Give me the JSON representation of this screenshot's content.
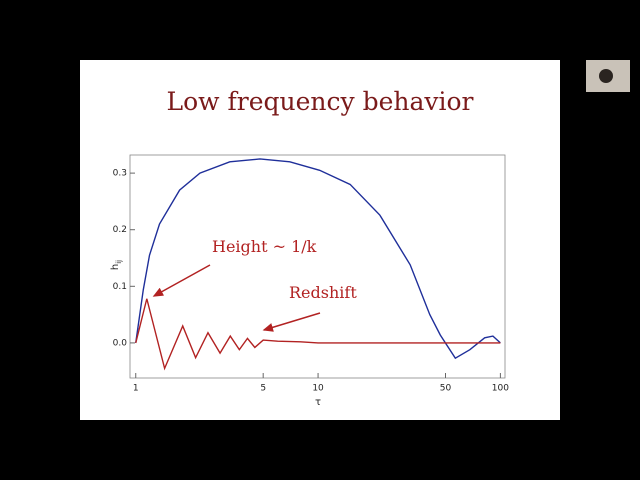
{
  "chart_data": {
    "type": "line",
    "title": "Low frequency behavior",
    "xlabel": "τ",
    "ylabel": [
      "h",
      "ij"
    ],
    "xscale": "log",
    "xlim": [
      0.93,
      106
    ],
    "ylim": [
      -0.062,
      0.332
    ],
    "xticks": [
      1,
      5,
      10,
      50,
      100
    ],
    "yticks": [
      {
        "value": 0,
        "label": "0.0"
      },
      0.1,
      0.2,
      0.3
    ],
    "annotations": [
      "Height ~ 1/k",
      "Redshift"
    ],
    "series": [
      {
        "color": "#1f2f9a",
        "x": [
          1,
          1.1,
          1.19,
          1.35,
          1.74,
          2.25,
          3.28,
          4.8,
          7,
          10.2,
          15,
          21.8,
          32,
          41,
          46.8,
          56.6,
          68,
          82,
          91,
          100
        ],
        "values": [
          0,
          0.094,
          0.155,
          0.21,
          0.27,
          0.3,
          0.32,
          0.325,
          0.32,
          0.305,
          0.28,
          0.226,
          0.138,
          0.05,
          0.014,
          -0.027,
          -0.012,
          0.009,
          0.012,
          0
        ]
      },
      {
        "color": "#b22222",
        "x": [
          1,
          1.15,
          1.44,
          1.81,
          2.13,
          2.49,
          2.9,
          3.3,
          3.7,
          4.1,
          4.5,
          5,
          6,
          8,
          10,
          20,
          50,
          100
        ],
        "values": [
          0,
          0.078,
          -0.045,
          0.03,
          -0.026,
          0.018,
          -0.018,
          0.012,
          -0.012,
          0.008,
          -0.008,
          0.005,
          0.003,
          0.002,
          0,
          0,
          0,
          0
        ]
      }
    ]
  }
}
